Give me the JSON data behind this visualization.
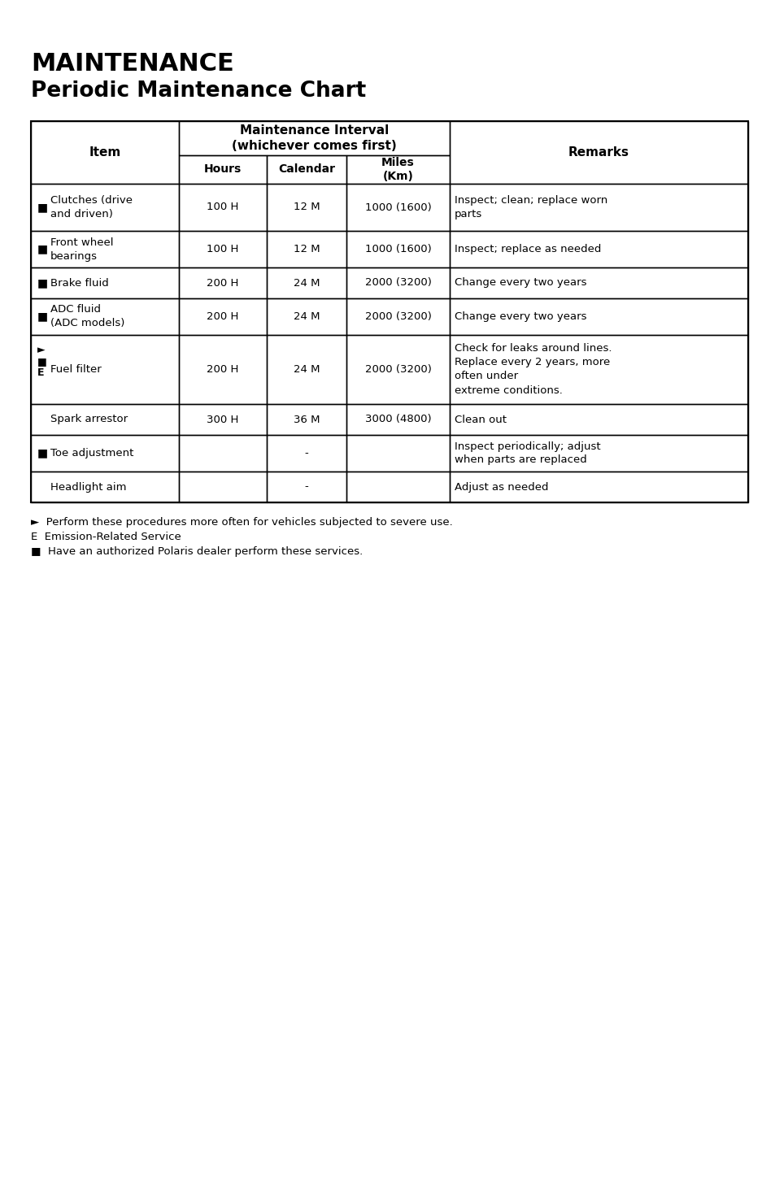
{
  "title_line1": "MAINTENANCE",
  "title_line2": "Periodic Maintenance Chart",
  "col_headers": [
    "Item",
    "Maintenance Interval\n(whichever comes first)",
    "Remarks"
  ],
  "sub_headers": [
    "Hours",
    "Calendar",
    "Miles\n(Km)"
  ],
  "rows": [
    {
      "prefix": "■",
      "item": "Clutches (drive\nand driven)",
      "hours": "100 H",
      "calendar": "12 M",
      "miles": "1000 (1600)",
      "remarks": "Inspect; clean; replace worn\nparts"
    },
    {
      "prefix": "■",
      "item": "Front wheel\nbearings",
      "hours": "100 H",
      "calendar": "12 M",
      "miles": "1000 (1600)",
      "remarks": "Inspect; replace as needed"
    },
    {
      "prefix": "■",
      "item": "Brake fluid",
      "hours": "200 H",
      "calendar": "24 M",
      "miles": "2000 (3200)",
      "remarks": "Change every two years"
    },
    {
      "prefix": "■",
      "item": "ADC fluid\n(ADC models)",
      "hours": "200 H",
      "calendar": "24 M",
      "miles": "2000 (3200)",
      "remarks": "Change every two years"
    },
    {
      "prefix": "►\n■\nE",
      "item": "Fuel filter",
      "hours": "200 H",
      "calendar": "24 M",
      "miles": "2000 (3200)",
      "remarks": "Check for leaks around lines.\nReplace every 2 years, more\noften under\nextreme conditions."
    },
    {
      "prefix": "",
      "item": "Spark arrestor",
      "hours": "300 H",
      "calendar": "36 M",
      "miles": "3000 (4800)",
      "remarks": "Clean out"
    },
    {
      "prefix": "■",
      "item": "Toe adjustment",
      "hours": "",
      "calendar": "-",
      "miles": "",
      "remarks": "Inspect periodically; adjust\nwhen parts are replaced"
    },
    {
      "prefix": "",
      "item": "Headlight aim",
      "hours": "",
      "calendar": "-",
      "miles": "",
      "remarks": "Adjust as needed"
    }
  ],
  "footnotes": [
    "►  Perform these procedures more often for vehicles subjected to severe use.",
    "E  Emission-Related Service",
    "■  Have an authorized Polaris dealer perform these services."
  ],
  "bg_color": "#ffffff",
  "text_color": "#000000",
  "border_color": "#000000",
  "header_bg": "#ffffff"
}
